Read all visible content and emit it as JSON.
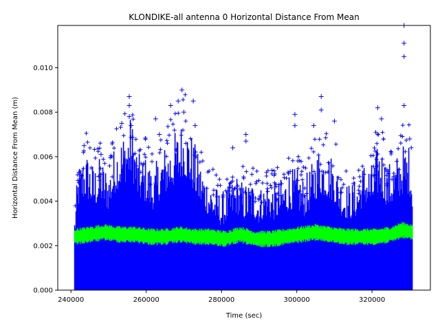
{
  "chart_data": {
    "type": "scatter",
    "title": "KLONDIKE-all antenna 0 Horizontal Distance From Mean",
    "xlabel": "Time (sec)",
    "ylabel": "Horizontal Distance From Mean (m)",
    "xlim": [
      236500,
      335500
    ],
    "ylim": [
      0,
      0.0119
    ],
    "x_ticks": [
      240000,
      260000,
      280000,
      300000,
      320000
    ],
    "x_tick_labels": [
      "240000",
      "260000",
      "280000",
      "300000",
      "320000"
    ],
    "y_ticks": [
      0.0,
      0.002,
      0.004,
      0.006,
      0.008,
      0.01
    ],
    "y_tick_labels": [
      "0.000",
      "0.002",
      "0.004",
      "0.006",
      "0.008",
      "0.010"
    ],
    "grid": false,
    "series": [
      {
        "marker": "+",
        "color": "#0000ff",
        "x_range": [
          241000,
          330800
        ],
        "band_top_envelope": [
          [
            241000,
            0.0032
          ],
          [
            242000,
            0.0052
          ],
          [
            244000,
            0.0058
          ],
          [
            246000,
            0.0052
          ],
          [
            248000,
            0.0055
          ],
          [
            250000,
            0.005
          ],
          [
            252000,
            0.0062
          ],
          [
            254000,
            0.0066
          ],
          [
            256000,
            0.0072
          ],
          [
            258000,
            0.0056
          ],
          [
            260000,
            0.0055
          ],
          [
            262000,
            0.005
          ],
          [
            264000,
            0.0058
          ],
          [
            266000,
            0.0062
          ],
          [
            268000,
            0.0066
          ],
          [
            270000,
            0.0072
          ],
          [
            272000,
            0.0065
          ],
          [
            274000,
            0.0055
          ],
          [
            276000,
            0.0048
          ],
          [
            278000,
            0.0044
          ],
          [
            280000,
            0.004
          ],
          [
            282000,
            0.0044
          ],
          [
            284000,
            0.0048
          ],
          [
            286000,
            0.0044
          ],
          [
            288000,
            0.0046
          ],
          [
            290000,
            0.0042
          ],
          [
            292000,
            0.0046
          ],
          [
            294000,
            0.0044
          ],
          [
            296000,
            0.0046
          ],
          [
            298000,
            0.005
          ],
          [
            300000,
            0.005
          ],
          [
            302000,
            0.0046
          ],
          [
            304000,
            0.0052
          ],
          [
            306000,
            0.006
          ],
          [
            308000,
            0.0058
          ],
          [
            310000,
            0.0055
          ],
          [
            312000,
            0.0046
          ],
          [
            314000,
            0.0044
          ],
          [
            316000,
            0.0046
          ],
          [
            318000,
            0.0054
          ],
          [
            320000,
            0.0052
          ],
          [
            322000,
            0.0062
          ],
          [
            324000,
            0.0052
          ],
          [
            326000,
            0.0054
          ],
          [
            328000,
            0.006
          ],
          [
            330000,
            0.006
          ],
          [
            330800,
            0.005
          ]
        ],
        "outliers": [
          [
            243500,
            0.0065
          ],
          [
            248000,
            0.0061
          ],
          [
            253500,
            0.0075
          ],
          [
            255500,
            0.0087
          ],
          [
            255500,
            0.0083
          ],
          [
            255500,
            0.0078
          ],
          [
            256000,
            0.0074
          ],
          [
            262500,
            0.0077
          ],
          [
            263500,
            0.007
          ],
          [
            266500,
            0.0083
          ],
          [
            268500,
            0.0085
          ],
          [
            269500,
            0.009
          ],
          [
            270000,
            0.008
          ],
          [
            272500,
            0.0085
          ],
          [
            273000,
            0.0074
          ],
          [
            283000,
            0.0064
          ],
          [
            286500,
            0.007
          ],
          [
            286500,
            0.0067
          ],
          [
            299500,
            0.0079
          ],
          [
            299500,
            0.0074
          ],
          [
            304500,
            0.0074
          ],
          [
            306500,
            0.0087
          ],
          [
            306500,
            0.0081
          ],
          [
            310000,
            0.0076
          ],
          [
            321500,
            0.0082
          ],
          [
            322500,
            0.0077
          ],
          [
            328500,
            0.0119
          ],
          [
            328500,
            0.0111
          ],
          [
            328500,
            0.0105
          ],
          [
            328500,
            0.0083
          ],
          [
            330000,
            0.0068
          ]
        ]
      },
      {
        "marker": "+",
        "color": "#00ff00",
        "x_range": [
          241000,
          330800
        ],
        "band_center": [
          [
            241000,
            0.0024
          ],
          [
            245000,
            0.0025
          ],
          [
            249000,
            0.0026
          ],
          [
            253000,
            0.0025
          ],
          [
            257000,
            0.0025
          ],
          [
            261000,
            0.0024
          ],
          [
            265000,
            0.0024
          ],
          [
            269000,
            0.0025
          ],
          [
            273000,
            0.0024
          ],
          [
            277000,
            0.0024
          ],
          [
            281000,
            0.0023
          ],
          [
            285000,
            0.0025
          ],
          [
            289000,
            0.0023
          ],
          [
            293000,
            0.0023
          ],
          [
            297000,
            0.0024
          ],
          [
            301000,
            0.0025
          ],
          [
            305000,
            0.0026
          ],
          [
            309000,
            0.0025
          ],
          [
            313000,
            0.0024
          ],
          [
            317000,
            0.0024
          ],
          [
            321000,
            0.0024
          ],
          [
            325000,
            0.0025
          ],
          [
            328000,
            0.0027
          ],
          [
            330800,
            0.0026
          ]
        ],
        "band_halfwidth": 0.0003
      }
    ]
  }
}
